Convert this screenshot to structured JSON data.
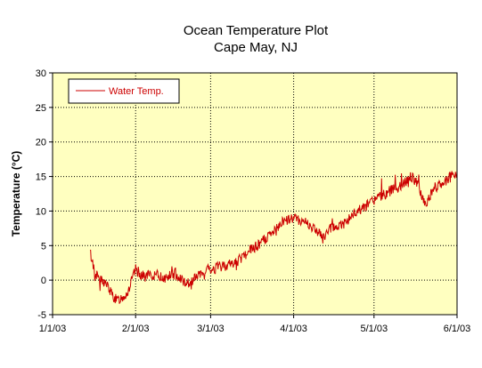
{
  "chart_data": {
    "type": "line",
    "title": "Ocean Temperature Plot",
    "subtitle": "Cape May, NJ",
    "xlabel": "",
    "ylabel": "Temperature (°C)",
    "ylim": [
      -5,
      30
    ],
    "y_ticks": [
      "-5",
      "0",
      "5",
      "10",
      "15",
      "20",
      "25",
      "30"
    ],
    "x_tick_labels": [
      "1/1/03",
      "2/1/03",
      "3/1/03",
      "4/1/03",
      "5/1/03",
      "6/1/03"
    ],
    "grid": true,
    "legend": "top-left",
    "plot_background": "#ffffc0",
    "series": [
      {
        "name": "Water Temp.",
        "color": "#cc0000",
        "x": [
          "1/15/03",
          "1/17/03",
          "1/19/03",
          "1/21/03",
          "1/23/03",
          "1/25/03",
          "1/27/03",
          "1/29/03",
          "2/1/03",
          "2/4/03",
          "2/8/03",
          "2/12/03",
          "2/16/03",
          "2/20/03",
          "2/24/03",
          "3/1/03",
          "3/5/03",
          "3/10/03",
          "3/15/03",
          "3/20/03",
          "3/25/03",
          "3/28/03",
          "4/1/03",
          "4/5/03",
          "4/10/03",
          "4/12/03",
          "4/15/03",
          "4/19/03",
          "4/25/03",
          "5/1/03",
          "5/5/03",
          "5/10/03",
          "5/15/03",
          "5/17/03",
          "5/20/03",
          "5/24/03",
          "5/28/03",
          "6/1/03"
        ],
        "values": [
          4.0,
          1.0,
          0.0,
          -0.5,
          -2.0,
          -3.0,
          -2.5,
          -1.8,
          1.5,
          0.5,
          0.8,
          0.3,
          1.0,
          -0.5,
          0.5,
          1.5,
          2.0,
          2.5,
          4.0,
          5.5,
          7.0,
          8.5,
          9.0,
          8.5,
          7.0,
          6.0,
          7.5,
          8.0,
          10.0,
          11.5,
          12.5,
          13.5,
          15.0,
          14.0,
          11.0,
          13.5,
          14.5,
          15.5
        ]
      }
    ],
    "x_start": "1/1/03",
    "x_end": "6/1/03"
  }
}
